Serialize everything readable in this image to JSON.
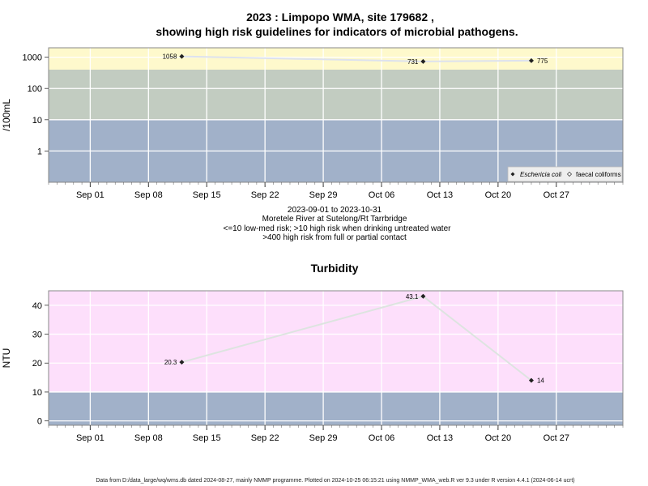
{
  "title": {
    "line1": "2023 : Limpopo WMA, site 179682 ,",
    "line2": "showing high risk guidelines for indicators of microbial pathogens."
  },
  "subtitle": {
    "line1": "2023-09-01 to 2023-10-31",
    "line2": "Moretele River at Sutelong/Rt Tarrbridge",
    "line3": "<=10 low-med risk; >10 high risk when drinking untreated water",
    "line4": ">400 high risk from full or partial contact"
  },
  "footer": "Data from D:/data_large/wq/wms.db dated 2024-08-27, mainly NMMP programme. Plotted on 2024-10-25 06:15:21 using NMMP_WMA_web.R ver 9.3 under R version 4.4.1 (2024-06-14 ucrt)",
  "colors": {
    "band_low": "#a1b1c9",
    "band_mid": "#c2ccc1",
    "band_high": "#fef9cc",
    "turb_high": "#fddffb",
    "line": "#dde2ee",
    "line2": "#dde4e0",
    "grid": "#ffffff",
    "marker": "#222222"
  },
  "chart_data": [
    {
      "type": "line",
      "ylabel": "/100mL",
      "yscale": "log",
      "ylim": [
        0.1,
        2000
      ],
      "yticks": [
        "1",
        "10",
        "100",
        "1000"
      ],
      "x_range": [
        "2023-08-27",
        "2023-11-04"
      ],
      "x_ticks": [
        "Sep 01",
        "Sep 08",
        "Sep 15",
        "Sep 22",
        "Sep 29",
        "Oct 06",
        "Oct 13",
        "Oct 20",
        "Oct 27"
      ],
      "x_tick_dates": [
        "2023-09-01",
        "2023-09-08",
        "2023-09-15",
        "2023-09-22",
        "2023-09-29",
        "2023-10-06",
        "2023-10-13",
        "2023-10-20",
        "2023-10-27"
      ],
      "bands": [
        {
          "from": 0.1,
          "to": 10,
          "color": "#a1b1c9"
        },
        {
          "from": 10,
          "to": 400,
          "color": "#c2ccc1"
        },
        {
          "from": 400,
          "to": 2000,
          "color": "#fef9cc"
        }
      ],
      "series": [
        {
          "name": "Eschericia coli",
          "points": [
            {
              "date": "2023-09-12",
              "value": 1058,
              "label": "1058"
            },
            {
              "date": "2023-10-11",
              "value": 731,
              "label": "731"
            },
            {
              "date": "2023-10-24",
              "value": 775,
              "label": "775"
            }
          ]
        }
      ],
      "legend": {
        "position": "bottom-right",
        "entries": [
          "Eschericia coli",
          "faecal coliforms"
        ]
      }
    },
    {
      "type": "line",
      "title": "Turbidity",
      "ylabel": "NTU",
      "ylim": [
        -1.5,
        45
      ],
      "yticks": [
        0,
        10,
        20,
        30,
        40
      ],
      "x_range": [
        "2023-08-27",
        "2023-11-04"
      ],
      "x_ticks": [
        "Sep 01",
        "Sep 08",
        "Sep 15",
        "Sep 22",
        "Sep 29",
        "Oct 06",
        "Oct 13",
        "Oct 20",
        "Oct 27"
      ],
      "x_tick_dates": [
        "2023-09-01",
        "2023-09-08",
        "2023-09-15",
        "2023-09-22",
        "2023-09-29",
        "2023-10-06",
        "2023-10-13",
        "2023-10-20",
        "2023-10-27"
      ],
      "bands": [
        {
          "from": -1.5,
          "to": 10,
          "color": "#a1b1c9"
        },
        {
          "from": 10,
          "to": 45,
          "color": "#fddffb"
        }
      ],
      "series": [
        {
          "points": [
            {
              "date": "2023-09-12",
              "value": 20.3,
              "label": "20.3"
            },
            {
              "date": "2023-10-11",
              "value": 43.1,
              "label": "43.1"
            },
            {
              "date": "2023-10-24",
              "value": 14,
              "label": "14"
            }
          ]
        }
      ]
    }
  ]
}
